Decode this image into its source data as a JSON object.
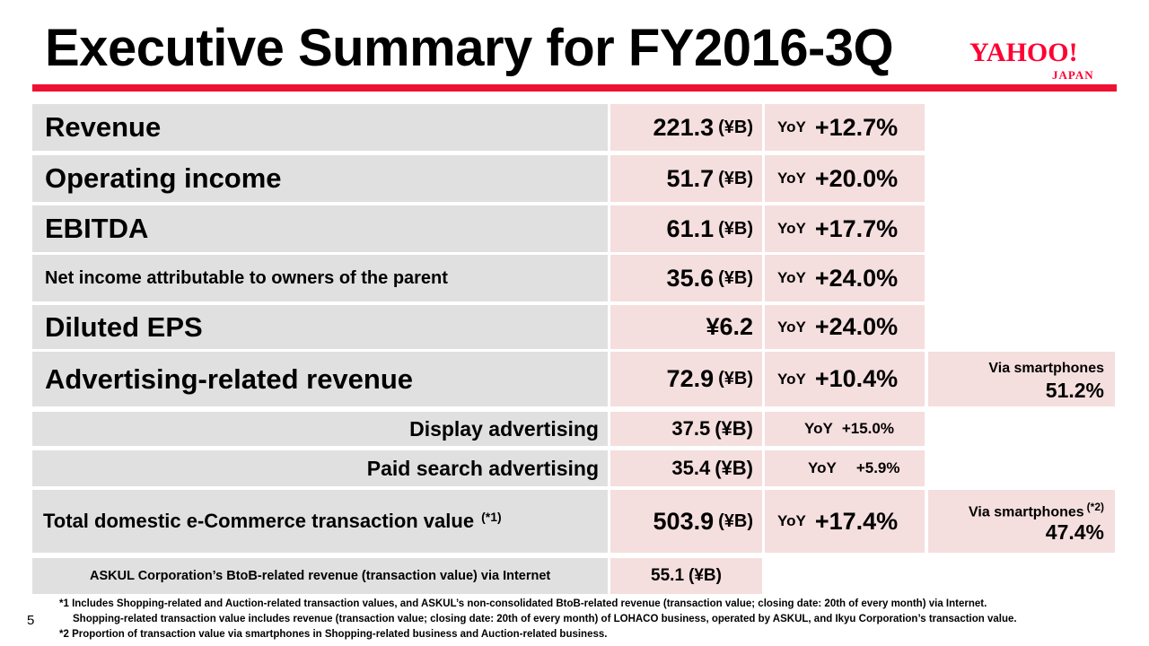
{
  "title": "Executive Summary for FY2016-3Q",
  "logo": {
    "main": "YAHOO!",
    "sub": "JAPAN"
  },
  "rows": [
    {
      "label": "Revenue",
      "value": "221.3",
      "unit": "(¥B)",
      "yoy_tag": "YoY",
      "yoy_value": "+12.7%"
    },
    {
      "label": "Operating income",
      "value": "51.7",
      "unit": "(¥B)",
      "yoy_tag": "YoY",
      "yoy_value": "+20.0%"
    },
    {
      "label": "EBITDA",
      "value": "61.1",
      "unit": "(¥B)",
      "yoy_tag": "YoY",
      "yoy_value": "+17.7%"
    },
    {
      "label": "Net income attributable to owners of the parent",
      "value": "35.6",
      "unit": "(¥B)",
      "yoy_tag": "YoY",
      "yoy_value": "+24.0%"
    },
    {
      "label": "Diluted EPS",
      "value": "¥6.2",
      "unit": "",
      "yoy_tag": "YoY",
      "yoy_value": "+24.0%"
    },
    {
      "label": "Advertising-related revenue",
      "value": "72.9",
      "unit": "(¥B)",
      "yoy_tag": "YoY",
      "yoy_value": "+10.4%",
      "extra_label": "Via smartphones",
      "extra_value": "51.2%"
    },
    {
      "label": "Display advertising",
      "value": "37.5",
      "unit": "(¥B)",
      "yoy_tag": "YoY",
      "yoy_value": "+15.0%"
    },
    {
      "label": "Paid search advertising",
      "value": "35.4",
      "unit": "(¥B)",
      "yoy_tag": "YoY",
      "yoy_value": "+5.9%"
    },
    {
      "label": "Total domestic e-Commerce transaction value",
      "label_note": "(*1)",
      "value": "503.9",
      "unit": "(¥B)",
      "yoy_tag": "YoY",
      "yoy_value": "+17.4%",
      "extra_label": "Via smartphones",
      "extra_note": "(*2)",
      "extra_value": "47.4%"
    },
    {
      "label": "ASKUL Corporation’s BtoB-related revenue (transaction value) via Internet",
      "value": "55.1",
      "unit": "(¥B)"
    }
  ],
  "footnotes": [
    "*1 Includes Shopping-related and Auction-related transaction values, and ASKUL’s non-consolidated BtoB-related revenue (transaction value; closing date: 20th of every month) via Internet.",
    "Shopping-related transaction value includes revenue (transaction value; closing date: 20th of every month) of LOHACO business, operated by ASKUL, and Ikyu Corporation’s transaction value.",
    "*2 Proportion of transaction value via smartphones in Shopping-related business and Auction-related business."
  ],
  "page_number": "5"
}
